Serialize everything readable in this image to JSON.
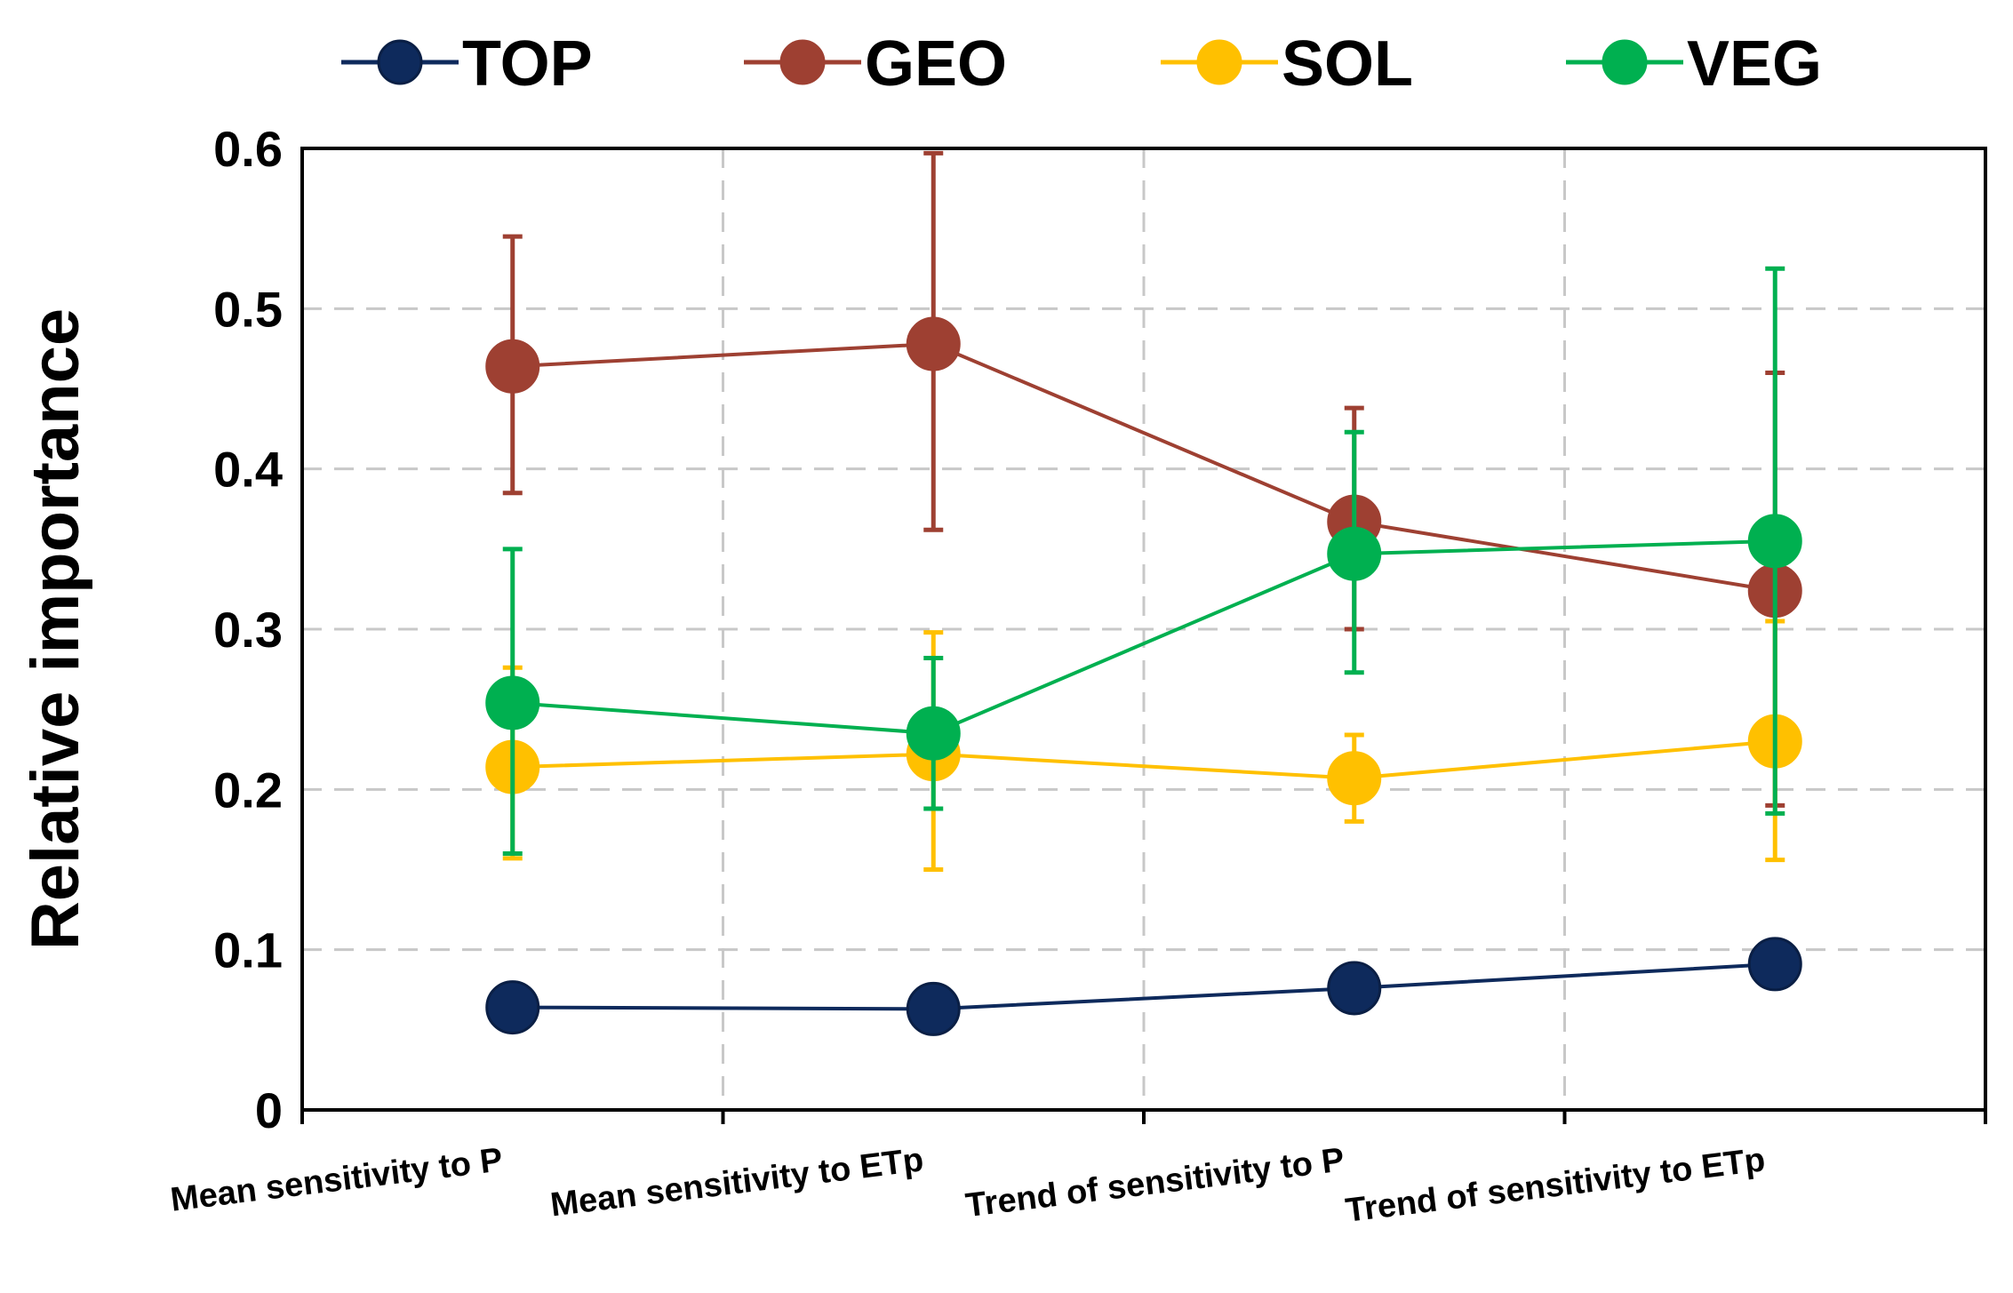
{
  "chart_data": {
    "type": "line",
    "title": "",
    "xlabel": "",
    "ylabel": "Relative importance",
    "ylim": [
      0,
      0.6
    ],
    "yticks": [
      "0",
      "0.1",
      "0.2",
      "0.3",
      "0.4",
      "0.5",
      "0.6"
    ],
    "grid": true,
    "legend_position": "top",
    "categories": [
      "Mean sensitivity to P",
      "Mean sensitivity to ETp",
      "Trend of sensitivity to P",
      "Trend of sensitivity to ETp"
    ],
    "series": [
      {
        "name": "TOP",
        "color": "#0e2a5c",
        "values": [
          0.064,
          0.063,
          0.076,
          0.091
        ],
        "err_low": [
          0.054,
          0.052,
          0.069,
          0.086
        ],
        "err_high": [
          0.074,
          0.077,
          0.083,
          0.096
        ]
      },
      {
        "name": "GEO",
        "color": "#9e4032",
        "values": [
          0.464,
          0.478,
          0.367,
          0.324
        ],
        "err_low": [
          0.385,
          0.362,
          0.3,
          0.19
        ],
        "err_high": [
          0.545,
          0.597,
          0.438,
          0.46
        ]
      },
      {
        "name": "SOL",
        "color": "#ffc000",
        "values": [
          0.214,
          0.222,
          0.207,
          0.23
        ],
        "err_low": [
          0.157,
          0.15,
          0.18,
          0.156
        ],
        "err_high": [
          0.276,
          0.298,
          0.234,
          0.305
        ]
      },
      {
        "name": "VEG",
        "color": "#00b050",
        "values": [
          0.254,
          0.235,
          0.347,
          0.355
        ],
        "err_low": [
          0.16,
          0.188,
          0.273,
          0.185
        ],
        "err_high": [
          0.35,
          0.282,
          0.423,
          0.525
        ]
      }
    ]
  }
}
